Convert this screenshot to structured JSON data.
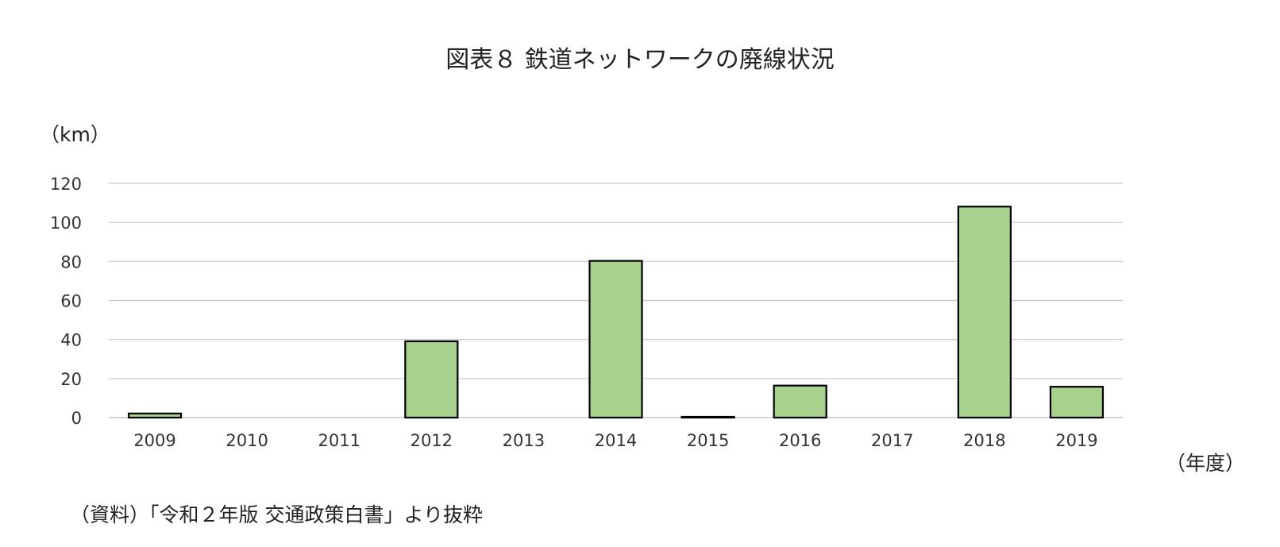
{
  "chart_data": {
    "type": "bar",
    "title": "図表８ 鉄道ネットワークの廃線状況",
    "ylabel": "（km）",
    "xlabel": "（年度）",
    "categories": [
      "2009",
      "2010",
      "2011",
      "2012",
      "2013",
      "2014",
      "2015",
      "2016",
      "2017",
      "2018",
      "2019"
    ],
    "values": [
      2.1,
      0,
      0,
      39.1,
      0,
      80.3,
      0.4,
      16.4,
      0,
      108.1,
      15.8
    ],
    "ylim": [
      0,
      120
    ],
    "yticks": [
      0,
      20,
      40,
      60,
      80,
      100,
      120
    ],
    "grid": true,
    "colors": {
      "bar": "#a9d18e",
      "bar_stroke": "#000000",
      "grid": "#c8c8c8"
    }
  },
  "source": "（資料）「令和２年版 交通政策白書」より抜粋"
}
